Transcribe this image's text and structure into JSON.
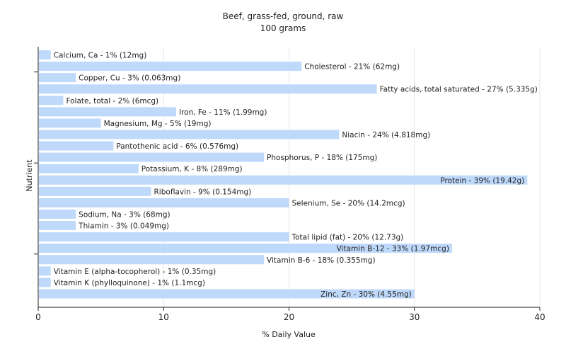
{
  "chart_data": {
    "type": "bar",
    "orientation": "horizontal",
    "title": "Beef, grass-fed, ground, raw",
    "subtitle": "100 grams",
    "xlabel": "% Daily Value",
    "ylabel": "Nutrient",
    "xlim": [
      0,
      40
    ],
    "xticks": [
      "0",
      "10",
      "20",
      "30",
      "40"
    ],
    "grid": "vertical",
    "bar_color": "#bfd9fb",
    "categories": [
      "Calcium, Ca",
      "Cholesterol",
      "Copper, Cu",
      "Fatty acids, total saturated",
      "Folate, total",
      "Iron, Fe",
      "Magnesium, Mg",
      "Niacin",
      "Pantothenic acid",
      "Phosphorus, P",
      "Potassium, K",
      "Protein",
      "Riboflavin",
      "Selenium, Se",
      "Sodium, Na",
      "Thiamin",
      "Total lipid (fat)",
      "Vitamin B-12",
      "Vitamin B-6",
      "Vitamin E (alpha-tocopherol)",
      "Vitamin K (phylloquinone)",
      "Zinc, Zn"
    ],
    "values": [
      1,
      21,
      3,
      27,
      2,
      11,
      5,
      24,
      6,
      18,
      8,
      39,
      9,
      20,
      3,
      3,
      20,
      33,
      18,
      1,
      1,
      30
    ],
    "labels": [
      "Calcium, Ca - 1% (12mg)",
      "Cholesterol - 21% (62mg)",
      "Copper, Cu - 3% (0.063mg)",
      "Fatty acids, total saturated - 27% (5.335g)",
      "Folate, total - 2% (6mcg)",
      "Iron, Fe - 11% (1.99mg)",
      "Magnesium, Mg - 5% (19mg)",
      "Niacin - 24% (4.818mg)",
      "Pantothenic acid - 6% (0.576mg)",
      "Phosphorus, P - 18% (175mg)",
      "Potassium, K - 8% (289mg)",
      "Protein - 39% (19.42g)",
      "Riboflavin - 9% (0.154mg)",
      "Selenium, Se - 20% (14.2mcg)",
      "Sodium, Na - 3% (68mg)",
      "Thiamin - 3% (0.049mg)",
      "Total lipid (fat) - 20% (12.73g)",
      "Vitamin B-12 - 33% (1.97mcg)",
      "Vitamin B-6 - 18% (0.355mg)",
      "Vitamin E (alpha-tocopherol) - 1% (0.35mg)",
      "Vitamin K (phylloquinone) - 1% (1.1mcg)",
      "Zinc, Zn - 30% (4.55mg)"
    ]
  }
}
